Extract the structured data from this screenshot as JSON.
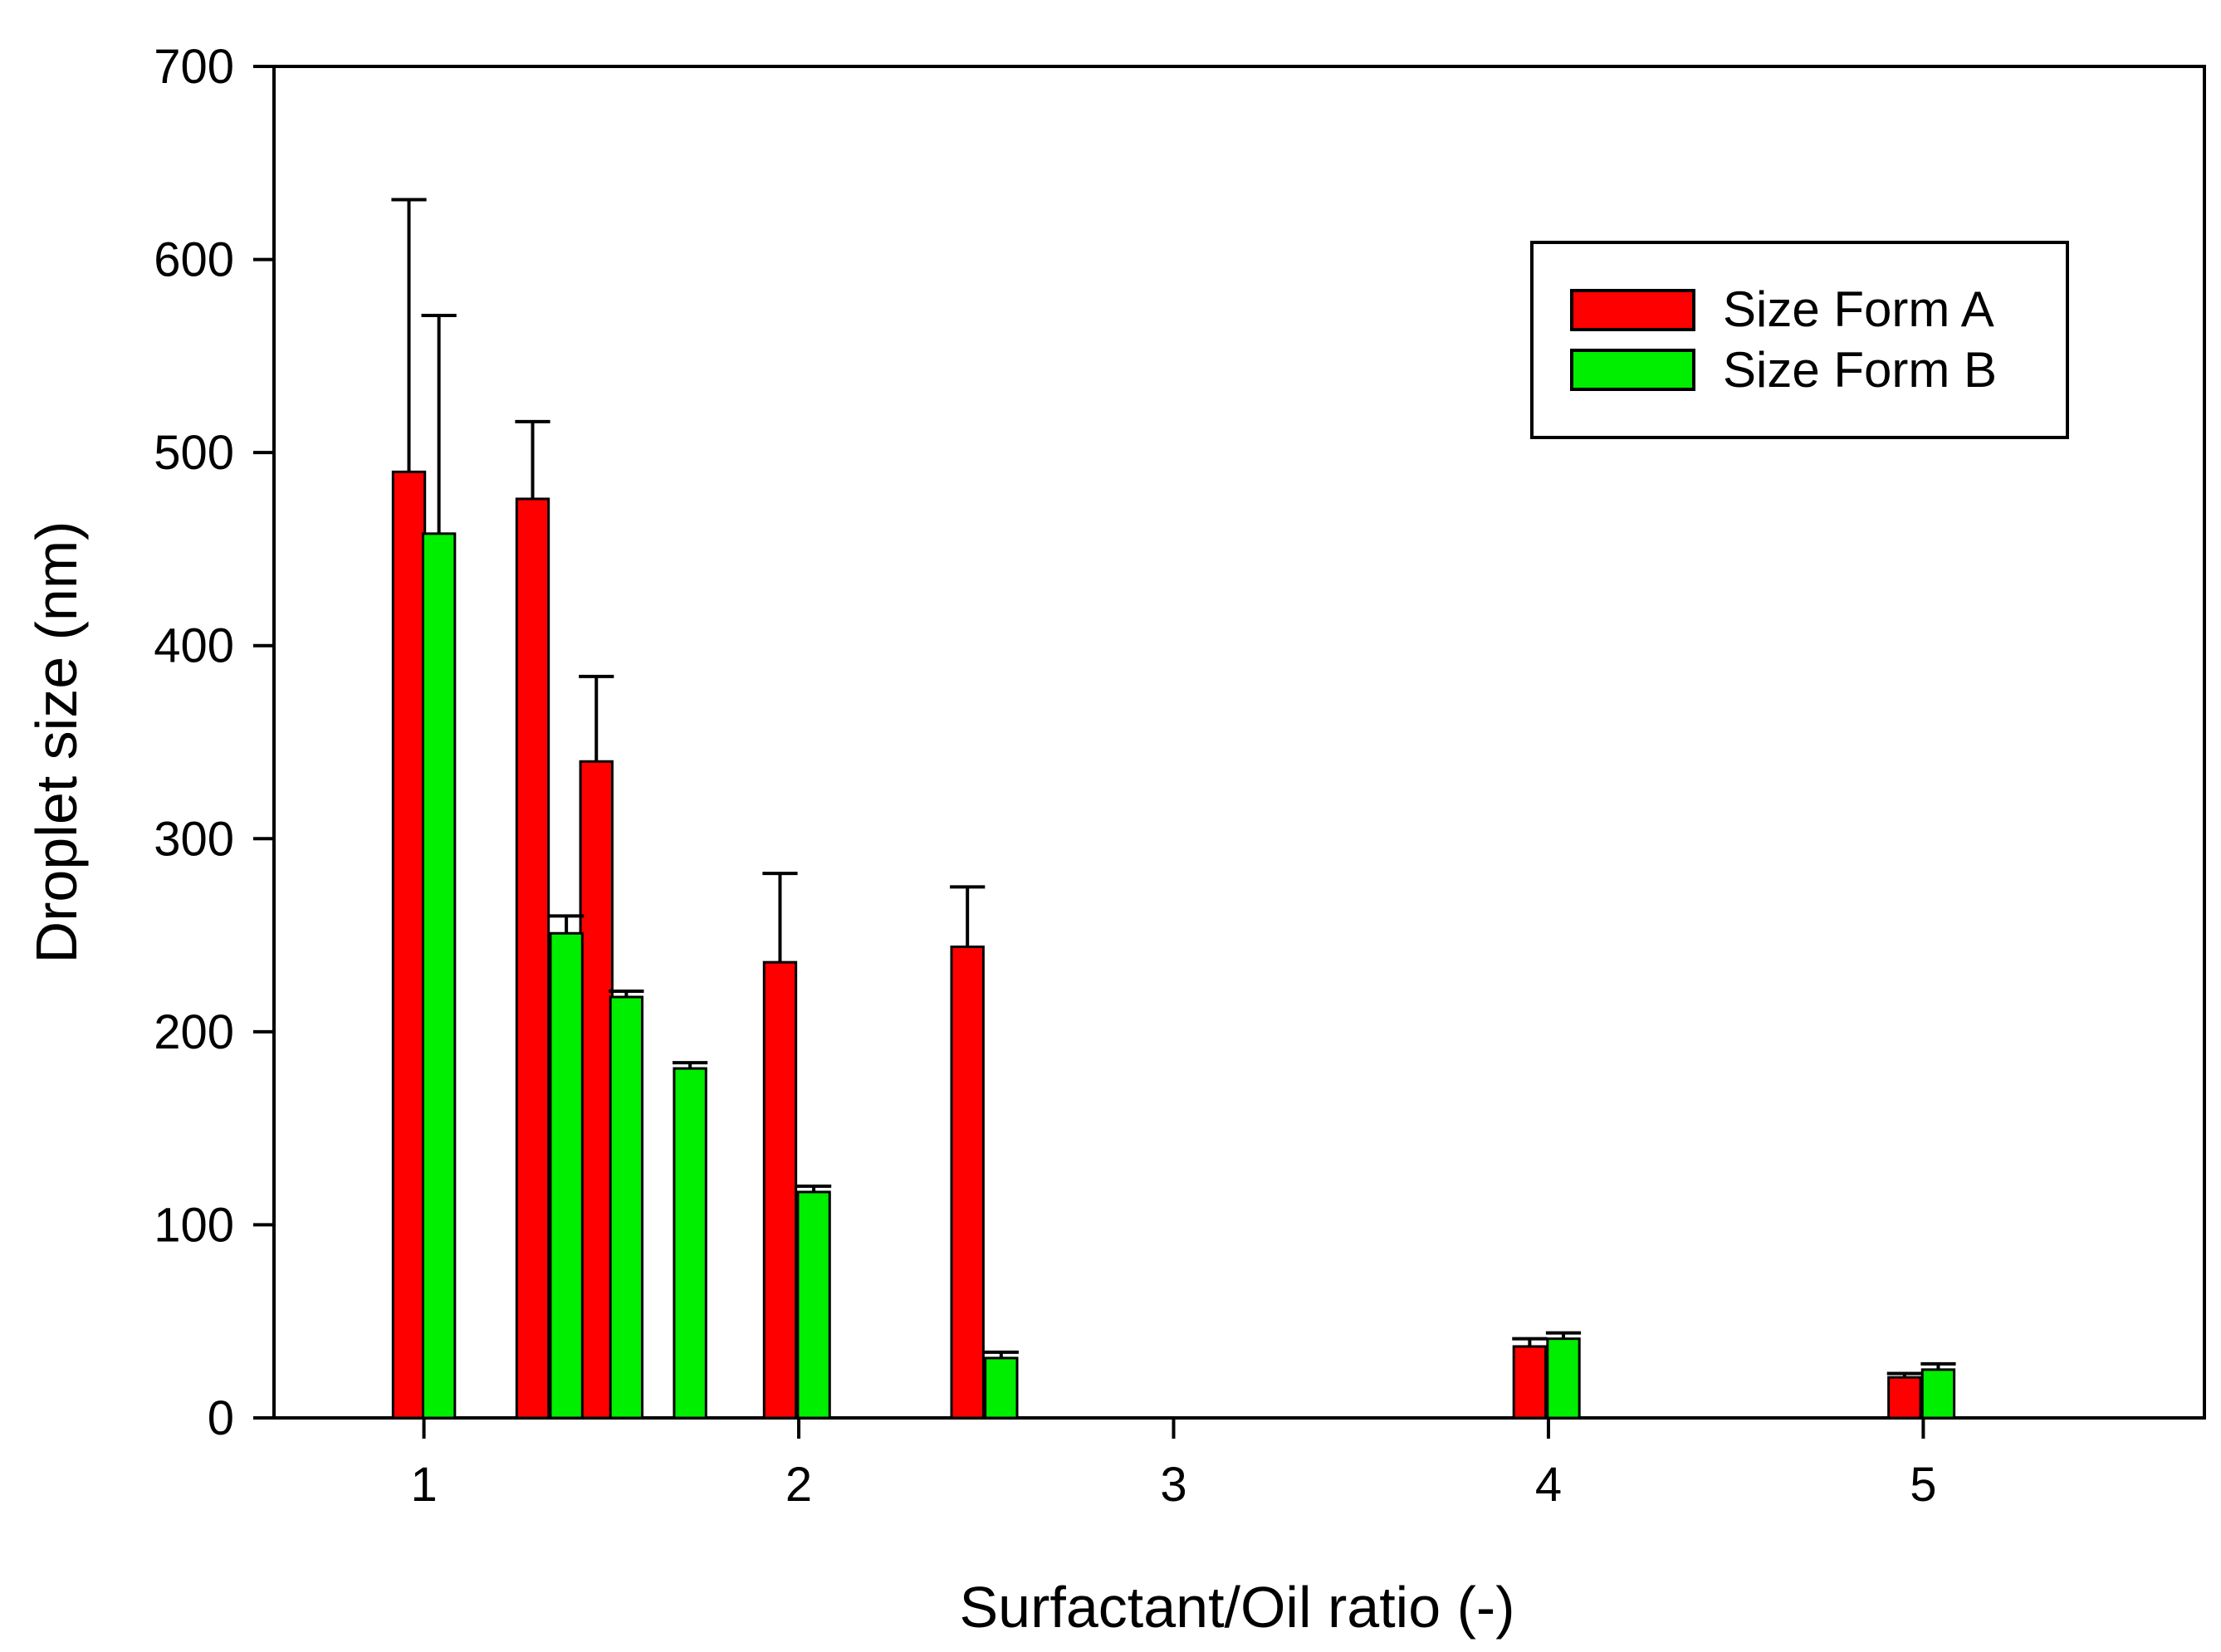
{
  "chart_data": {
    "type": "bar",
    "title": "",
    "xlabel": "Surfactant/Oil ratio (-)",
    "ylabel": "Droplet size (nm)",
    "xlim": [
      0.6,
      5.75
    ],
    "ylim": [
      0,
      700
    ],
    "x_ticks": [
      "1",
      "2",
      "3",
      "4",
      "5"
    ],
    "x_tick_values": [
      1,
      2,
      3,
      4,
      5
    ],
    "y_ticks": [
      "0",
      "100",
      "200",
      "300",
      "400",
      "500",
      "600",
      "700"
    ],
    "y_tick_values": [
      0,
      100,
      200,
      300,
      400,
      500,
      600,
      700
    ],
    "grid": false,
    "legend_position": "top-right",
    "bar_width": 0.085,
    "series": [
      {
        "name": "Size Form A",
        "color": "#ff0000",
        "x": [
          0.96,
          1.29,
          1.46,
          1.95,
          2.45,
          3.95,
          4.95
        ],
        "values": [
          490,
          476,
          340,
          236,
          244,
          37,
          21
        ],
        "errors": [
          141,
          40,
          44,
          46,
          31,
          4,
          2
        ]
      },
      {
        "name": "Size Form B",
        "color": "#00ee00",
        "x": [
          1.04,
          1.38,
          1.54,
          1.71,
          2.04,
          2.54,
          4.04,
          5.04
        ],
        "values": [
          458,
          251,
          218,
          181,
          117,
          31,
          41,
          25
        ],
        "errors": [
          113,
          9,
          3,
          3,
          3,
          3,
          3,
          3
        ]
      }
    ]
  }
}
